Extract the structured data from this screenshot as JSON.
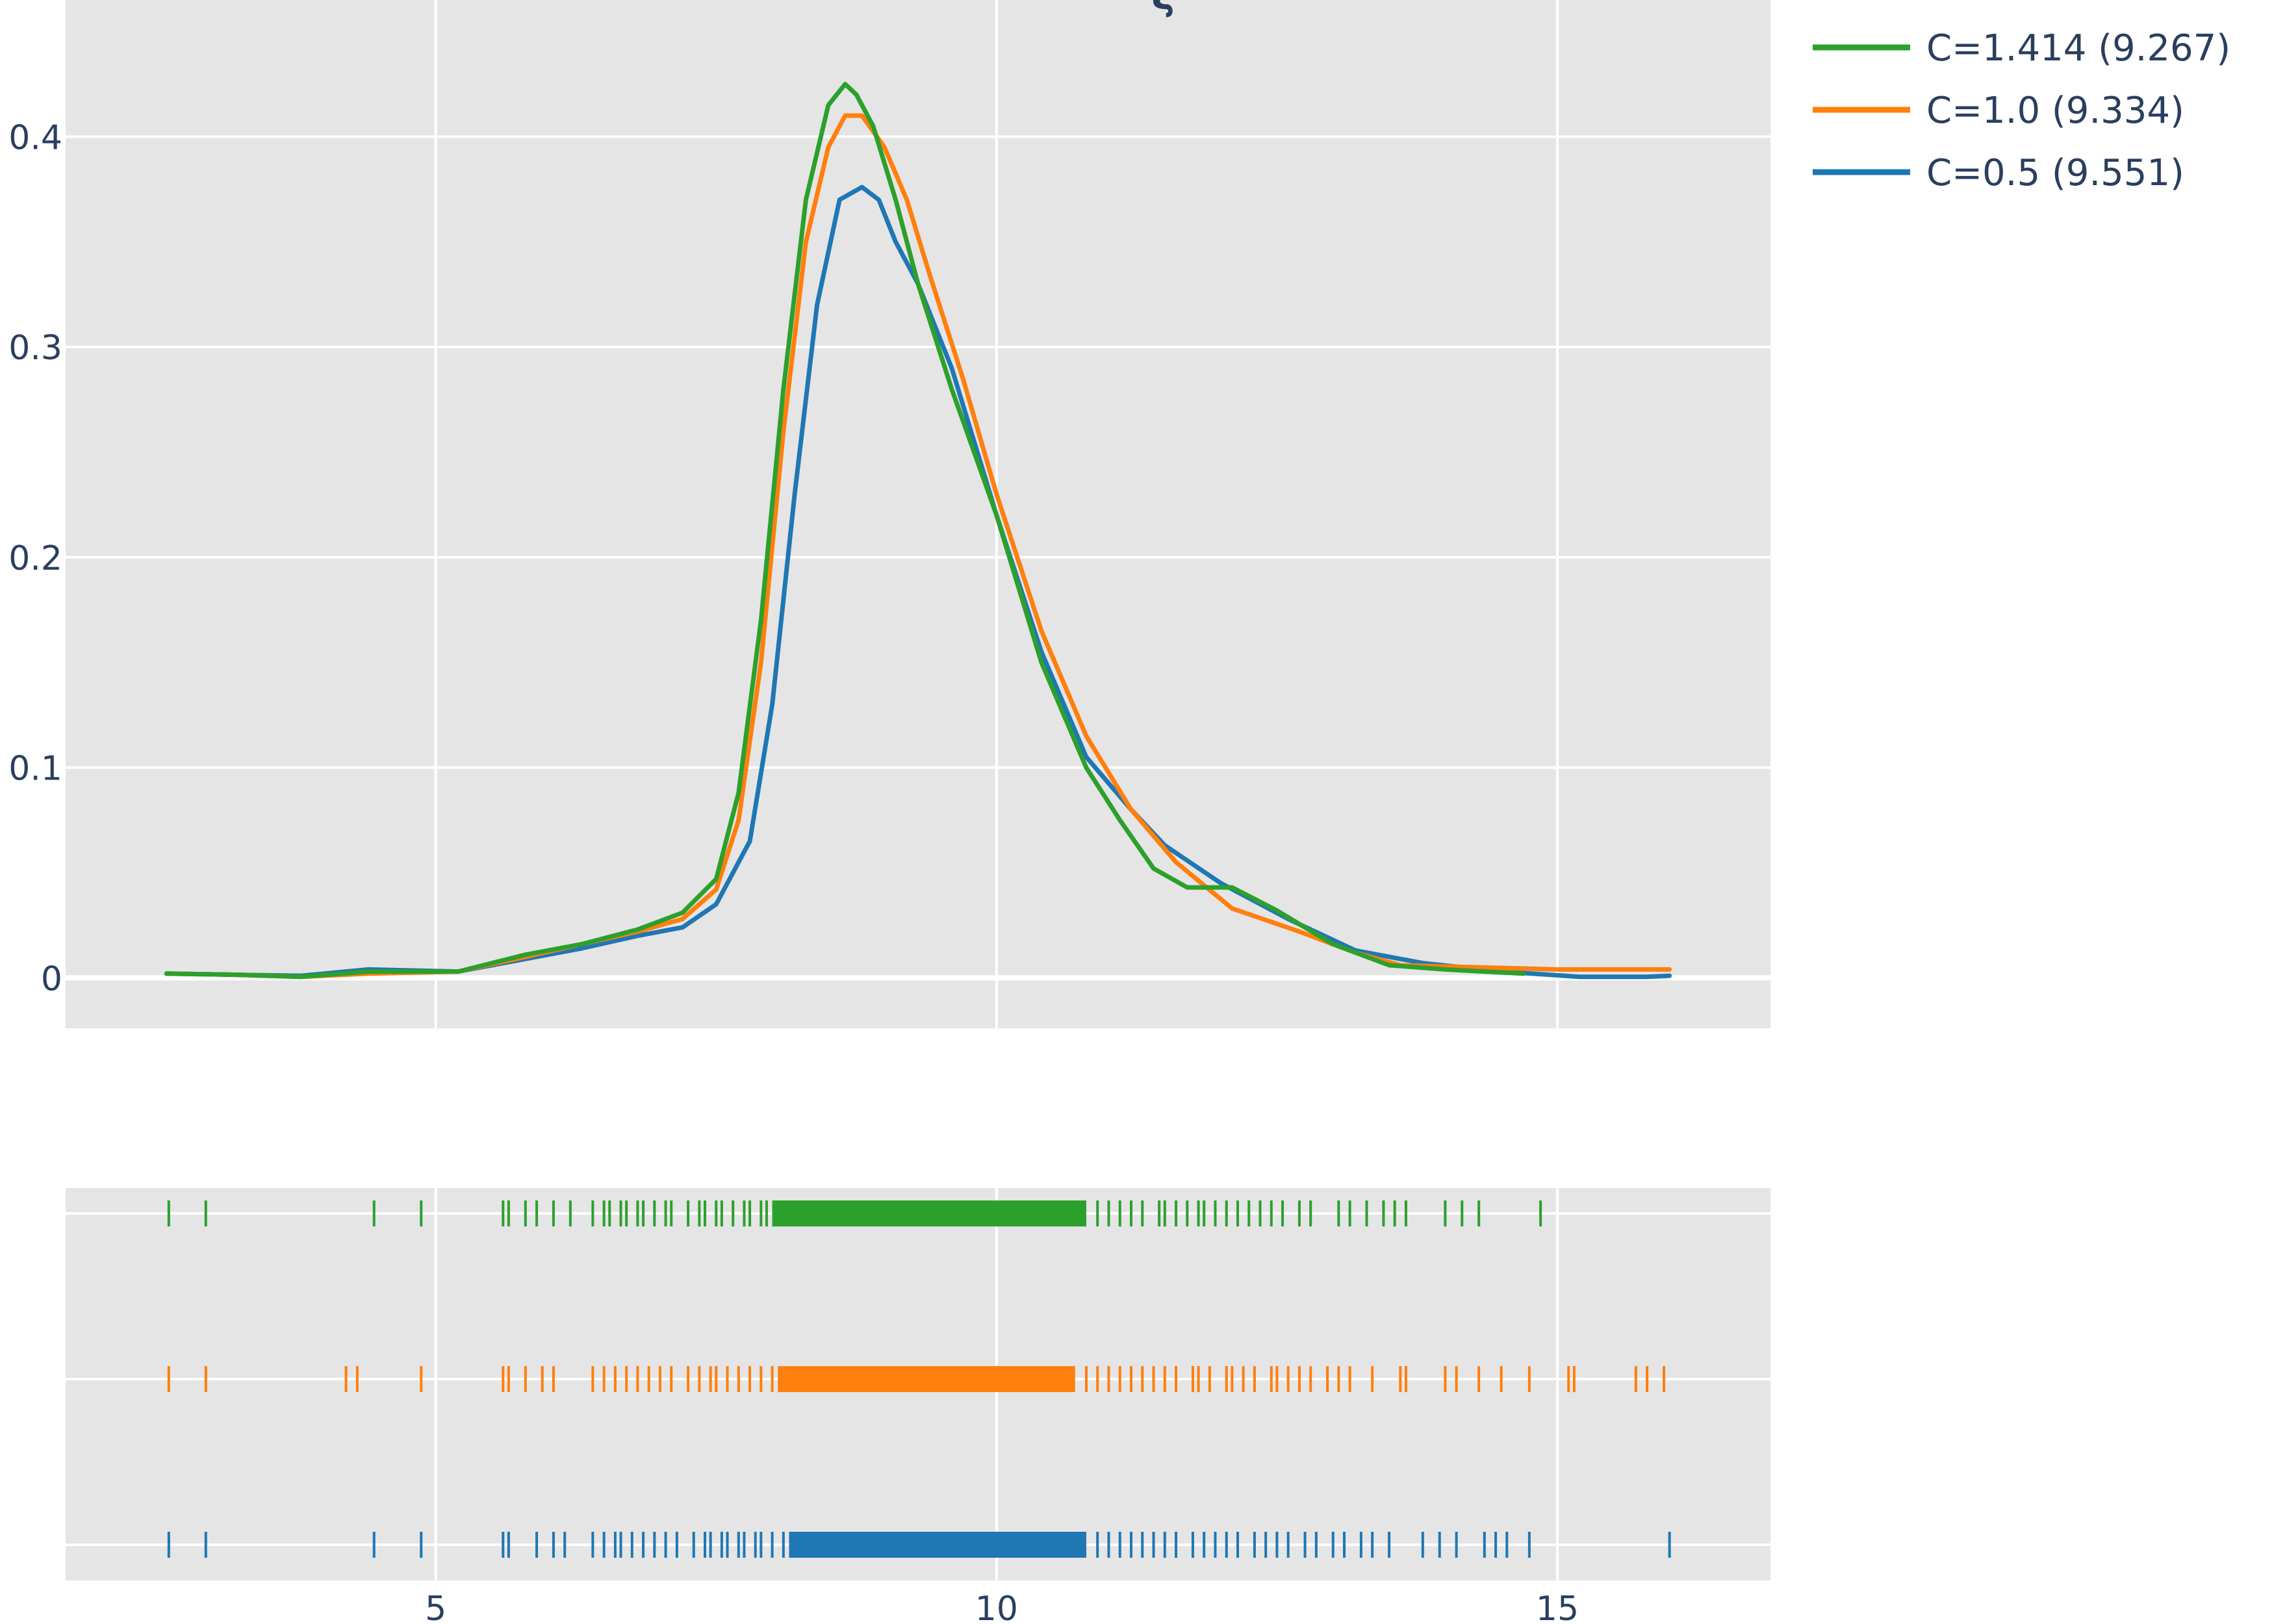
{
  "chart_data": {
    "type": "line",
    "title": "ξ",
    "legend_position": "top-right",
    "grid": true,
    "xlim": [
      1.7,
      16.9
    ],
    "ylim": [
      -0.024,
      0.465
    ],
    "x_ticks": [
      5,
      10,
      15
    ],
    "y_ticks": [
      0,
      0.1,
      0.2,
      0.3,
      0.4
    ],
    "x_tick_labels": [
      "5",
      "10",
      "15"
    ],
    "y_tick_labels": [
      "0",
      "0.1",
      "0.2",
      "0.3",
      "0.4"
    ],
    "series": [
      {
        "name": "C=1.414 (9.267)",
        "color": "#2ca02c",
        "x": [
          2.6,
          3.2,
          3.8,
          4.4,
          5.2,
          5.8,
          6.3,
          6.8,
          7.2,
          7.5,
          7.7,
          7.9,
          8.1,
          8.3,
          8.5,
          8.65,
          8.75,
          8.9,
          9.1,
          9.3,
          9.6,
          10.0,
          10.4,
          10.8,
          11.1,
          11.4,
          11.7,
          12.1,
          12.5,
          13.0,
          13.5,
          14.0,
          14.7
        ],
        "values": [
          0.002,
          0.0015,
          0.0005,
          0.003,
          0.003,
          0.011,
          0.016,
          0.023,
          0.031,
          0.047,
          0.088,
          0.17,
          0.28,
          0.37,
          0.415,
          0.425,
          0.42,
          0.405,
          0.37,
          0.33,
          0.28,
          0.22,
          0.15,
          0.1,
          0.075,
          0.052,
          0.043,
          0.043,
          0.032,
          0.016,
          0.006,
          0.004,
          0.002
        ]
      },
      {
        "name": "C=1.0 (9.334)",
        "color": "#ff7f0e",
        "x": [
          2.6,
          3.2,
          3.8,
          4.4,
          5.2,
          5.8,
          6.3,
          6.8,
          7.2,
          7.5,
          7.7,
          7.9,
          8.1,
          8.3,
          8.5,
          8.65,
          8.8,
          9.0,
          9.2,
          9.4,
          9.7,
          10.0,
          10.4,
          10.8,
          11.2,
          11.6,
          12.1,
          12.7,
          13.2,
          13.6,
          14.3,
          15.0,
          16.0
        ],
        "values": [
          0.002,
          0.0015,
          0.0005,
          0.002,
          0.003,
          0.01,
          0.016,
          0.022,
          0.028,
          0.042,
          0.075,
          0.15,
          0.26,
          0.35,
          0.395,
          0.41,
          0.41,
          0.395,
          0.37,
          0.335,
          0.285,
          0.23,
          0.165,
          0.115,
          0.08,
          0.055,
          0.033,
          0.022,
          0.012,
          0.006,
          0.005,
          0.004,
          0.004
        ]
      },
      {
        "name": "C=0.5 (9.551)",
        "color": "#1f77b4",
        "x": [
          2.6,
          3.2,
          3.8,
          4.4,
          5.2,
          5.8,
          6.3,
          6.8,
          7.2,
          7.5,
          7.8,
          8.0,
          8.2,
          8.4,
          8.6,
          8.8,
          8.95,
          9.1,
          9.3,
          9.6,
          10.0,
          10.4,
          10.8,
          11.2,
          11.5,
          12.0,
          12.6,
          13.2,
          13.8,
          14.5,
          15.2,
          15.8,
          16.0
        ],
        "values": [
          0.002,
          0.0015,
          0.001,
          0.004,
          0.003,
          0.009,
          0.014,
          0.02,
          0.024,
          0.035,
          0.065,
          0.13,
          0.23,
          0.32,
          0.37,
          0.376,
          0.37,
          0.35,
          0.33,
          0.29,
          0.22,
          0.155,
          0.105,
          0.08,
          0.063,
          0.045,
          0.028,
          0.013,
          0.007,
          0.003,
          0.0005,
          0.0005,
          0.001
        ]
      }
    ],
    "rug": [
      {
        "name": "C=1.414 (9.267)",
        "color": "#2ca02c",
        "x": [
          2.62,
          2.95,
          4.45,
          4.87,
          5.6,
          5.65,
          5.8,
          5.9,
          6.05,
          6.2,
          6.4,
          6.5,
          6.55,
          6.65,
          6.7,
          6.8,
          6.85,
          6.95,
          7.05,
          7.1,
          7.25,
          7.35,
          7.4,
          7.5,
          7.55,
          7.65,
          7.75,
          7.8,
          7.9,
          7.95
        ],
        "dense_from": 8.0,
        "dense_to": 10.8,
        "x_tail": [
          10.9,
          11.0,
          11.1,
          11.2,
          11.3,
          11.45,
          11.5,
          11.6,
          11.7,
          11.8,
          11.85,
          11.95,
          12.05,
          12.15,
          12.25,
          12.35,
          12.45,
          12.55,
          12.7,
          12.8,
          13.05,
          13.15,
          13.3,
          13.45,
          13.55,
          13.65,
          14.0,
          14.15,
          14.3,
          14.85
        ]
      },
      {
        "name": "C=1.0 (9.334)",
        "color": "#ff7f0e",
        "x": [
          2.62,
          2.95,
          4.2,
          4.3,
          4.87,
          5.6,
          5.65,
          5.8,
          5.95,
          6.05,
          6.4,
          6.5,
          6.6,
          6.7,
          6.8,
          6.9,
          7.0,
          7.1,
          7.25,
          7.35,
          7.45,
          7.5,
          7.6,
          7.7,
          7.8,
          7.9,
          8.0
        ],
        "dense_from": 8.05,
        "dense_to": 10.7,
        "x_tail": [
          10.8,
          10.9,
          11.0,
          11.1,
          11.2,
          11.3,
          11.4,
          11.5,
          11.6,
          11.75,
          11.8,
          11.9,
          12.05,
          12.1,
          12.2,
          12.3,
          12.45,
          12.5,
          12.6,
          12.7,
          12.8,
          12.95,
          13.05,
          13.15,
          13.35,
          13.6,
          13.65,
          14.0,
          14.1,
          14.3,
          14.5,
          14.75,
          15.1,
          15.15,
          15.7,
          15.8,
          15.95
        ]
      },
      {
        "name": "C=0.5 (9.551)",
        "color": "#1f77b4",
        "x": [
          2.62,
          2.95,
          4.45,
          4.87,
          5.6,
          5.65,
          5.9,
          6.05,
          6.15,
          6.4,
          6.5,
          6.6,
          6.65,
          6.75,
          6.85,
          6.95,
          7.05,
          7.15,
          7.3,
          7.4,
          7.45,
          7.55,
          7.6,
          7.7,
          7.75,
          7.85,
          7.9,
          8.0,
          8.1
        ],
        "dense_from": 8.15,
        "dense_to": 10.8,
        "x_tail": [
          10.9,
          11.0,
          11.1,
          11.2,
          11.3,
          11.4,
          11.5,
          11.6,
          11.75,
          11.85,
          11.95,
          12.05,
          12.15,
          12.3,
          12.4,
          12.5,
          12.6,
          12.75,
          12.85,
          13.0,
          13.1,
          13.25,
          13.35,
          13.5,
          13.8,
          13.95,
          14.1,
          14.35,
          14.45,
          14.55,
          14.75,
          16.0
        ]
      }
    ]
  }
}
